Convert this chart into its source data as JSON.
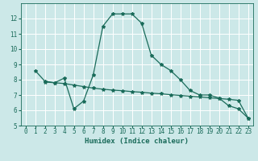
{
  "xlabel": "Humidex (Indice chaleur)",
  "bg_color": "#cce8e8",
  "grid_color": "#ffffff",
  "line_color": "#1a6b5a",
  "axis_bg": "#cce8e8",
  "bottom_bar_color": "#3a6060",
  "xlim": [
    -0.5,
    23.5
  ],
  "ylim": [
    5,
    13
  ],
  "yticks": [
    5,
    6,
    7,
    8,
    9,
    10,
    11,
    12
  ],
  "xticks": [
    0,
    1,
    2,
    3,
    4,
    5,
    6,
    7,
    8,
    9,
    10,
    11,
    12,
    13,
    14,
    15,
    16,
    17,
    18,
    19,
    20,
    21,
    22,
    23
  ],
  "line1_x": [
    1,
    2,
    3,
    4,
    5,
    6,
    7,
    8,
    9,
    10,
    11,
    12,
    13,
    14,
    15,
    16,
    17,
    18,
    19,
    20,
    21,
    22,
    23
  ],
  "line1_y": [
    8.6,
    7.9,
    7.8,
    8.1,
    6.1,
    6.6,
    8.3,
    11.5,
    12.3,
    12.3,
    12.3,
    11.7,
    9.6,
    9.0,
    8.6,
    8.0,
    7.3,
    7.0,
    7.0,
    6.8,
    6.3,
    6.1,
    5.5
  ],
  "line2_x": [
    2,
    3,
    4,
    5,
    6,
    7,
    8,
    9,
    10,
    11,
    12,
    13,
    14,
    15,
    16,
    17,
    18,
    19,
    20,
    21,
    22,
    23
  ],
  "line2_y": [
    7.85,
    7.8,
    7.75,
    7.65,
    7.55,
    7.45,
    7.38,
    7.32,
    7.28,
    7.22,
    7.18,
    7.12,
    7.08,
    7.02,
    6.97,
    6.92,
    6.87,
    6.82,
    6.77,
    6.72,
    6.65,
    5.5
  ],
  "tick_fontsize": 5.5,
  "xlabel_fontsize": 6.5,
  "marker_size": 3
}
